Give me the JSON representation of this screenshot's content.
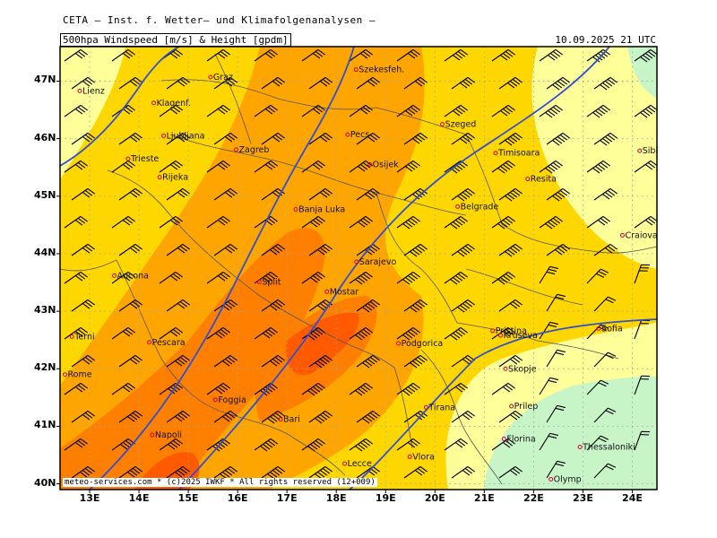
{
  "header": {
    "title": "CETA — Inst. f. Wetter— und Klimafolgenanalysen —",
    "subtitle": "500hpa Windspeed [m/s] & Height [gpdm]",
    "valid_time": "10.09.2025 21 UTC"
  },
  "footer": {
    "credit": "meteo-services.com * (c)2025 IWKF * All rights reserved (12+009)"
  },
  "axes": {
    "lat_labels": [
      "47N",
      "46N",
      "45N",
      "44N",
      "43N",
      "42N",
      "41N",
      "40N"
    ],
    "lon_labels": [
      "13E",
      "14E",
      "15E",
      "16E",
      "17E",
      "18E",
      "19E",
      "20E",
      "21E",
      "22E",
      "23E",
      "24E"
    ]
  },
  "colors": {
    "calm": "#c8f5c8",
    "light": "#ffff99",
    "low": "#ffd700",
    "medium": "#ffa500",
    "high": "#ff7f00",
    "strong": "#ff5a00",
    "contour": "#3050d0",
    "border": "#555555",
    "city": "#d0003a"
  },
  "cities": [
    {
      "name": "Lienz",
      "lon": 12.8,
      "lat": 46.83
    },
    {
      "name": "Graz",
      "lon": 15.45,
      "lat": 47.07
    },
    {
      "name": "Szekesfeh.",
      "lon": 18.4,
      "lat": 47.2
    },
    {
      "name": "Klagenf.",
      "lon": 14.3,
      "lat": 46.62
    },
    {
      "name": "Ljubljana",
      "lon": 14.5,
      "lat": 46.05
    },
    {
      "name": "Zagreb",
      "lon": 15.97,
      "lat": 45.81
    },
    {
      "name": "Pecs",
      "lon": 18.23,
      "lat": 46.07
    },
    {
      "name": "Szeged",
      "lon": 20.15,
      "lat": 46.25
    },
    {
      "name": "Trieste",
      "lon": 13.78,
      "lat": 45.65
    },
    {
      "name": "Rijeka",
      "lon": 14.42,
      "lat": 45.33
    },
    {
      "name": "Osijek",
      "lon": 18.68,
      "lat": 45.55
    },
    {
      "name": "Timisoara",
      "lon": 21.23,
      "lat": 45.75
    },
    {
      "name": "Sibiu",
      "lon": 24.15,
      "lat": 45.79
    },
    {
      "name": "Resita",
      "lon": 21.88,
      "lat": 45.3
    },
    {
      "name": "Banja Luka",
      "lon": 17.18,
      "lat": 44.77
    },
    {
      "name": "Belgrade",
      "lon": 20.46,
      "lat": 44.82
    },
    {
      "name": "Craiova",
      "lon": 23.8,
      "lat": 44.32
    },
    {
      "name": "Sarajevo",
      "lon": 18.41,
      "lat": 43.86
    },
    {
      "name": "Ancona",
      "lon": 13.5,
      "lat": 43.62
    },
    {
      "name": "Split",
      "lon": 16.44,
      "lat": 43.51
    },
    {
      "name": "Mostar",
      "lon": 17.81,
      "lat": 43.34
    },
    {
      "name": "Terni",
      "lon": 12.64,
      "lat": 42.56
    },
    {
      "name": "Pescara",
      "lon": 14.21,
      "lat": 42.46
    },
    {
      "name": "Kruseva",
      "lon": 21.33,
      "lat": 42.58
    },
    {
      "name": "Pristina",
      "lon": 21.17,
      "lat": 42.66
    },
    {
      "name": "Sofia",
      "lon": 23.32,
      "lat": 42.7
    },
    {
      "name": "Podgorica",
      "lon": 19.26,
      "lat": 42.44
    },
    {
      "name": "Rome",
      "lon": 12.5,
      "lat": 41.9
    },
    {
      "name": "Skopje",
      "lon": 21.43,
      "lat": 42.0
    },
    {
      "name": "Tirana",
      "lon": 19.82,
      "lat": 41.33
    },
    {
      "name": "Foggia",
      "lon": 15.55,
      "lat": 41.46
    },
    {
      "name": "Prilep",
      "lon": 21.55,
      "lat": 41.35
    },
    {
      "name": "Bari",
      "lon": 16.87,
      "lat": 41.12
    },
    {
      "name": "Napoli",
      "lon": 14.27,
      "lat": 40.85
    },
    {
      "name": "Florina",
      "lon": 21.4,
      "lat": 40.78
    },
    {
      "name": "Thessaloniki",
      "lon": 22.94,
      "lat": 40.64
    },
    {
      "name": "Lecce",
      "lon": 18.17,
      "lat": 40.35
    },
    {
      "name": "Vlora",
      "lon": 19.49,
      "lat": 40.47
    },
    {
      "name": "Olymp",
      "lon": 22.35,
      "lat": 40.08
    }
  ]
}
